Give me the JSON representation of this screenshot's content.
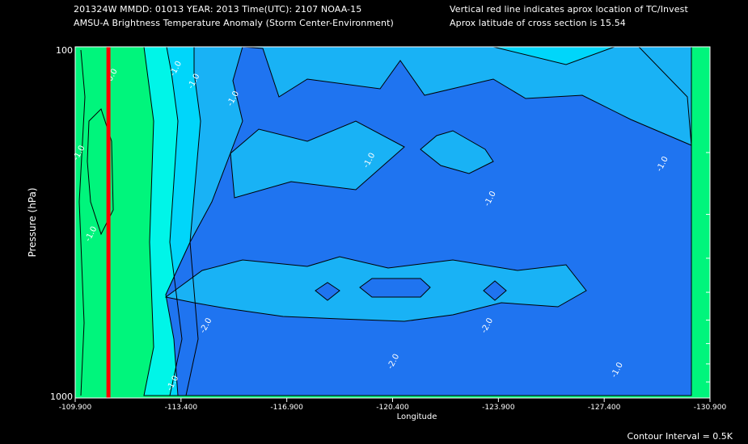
{
  "header": {
    "line1_left": "201324W  MMDD: 01013 YEAR: 2013 Time(UTC): 2107 NOAA-15",
    "line2_left": "AMSU-A Brightness Temperature Anomaly (Storm Center-Environment)",
    "line1_right": "Vertical red line indicates aprox location of TC/Invest",
    "line2_right": "Aprox latitude of cross section is 15.54"
  },
  "footer": {
    "contour_interval": "Contour Interval = 0.5K"
  },
  "colors": {
    "background": "#000000",
    "fill_green": "#00f57c",
    "fill_aqua": "#00f5e8",
    "fill_cyan": "#00d6fa",
    "fill_lightblue": "#19b2f5",
    "fill_blue": "#1f74f0",
    "storm_line": "#ff0000",
    "contour": "#000000"
  },
  "chart_data": {
    "type": "contour",
    "xlabel": "Longitude",
    "ylabel": "Pressure (hPa)",
    "x_ticks": [
      "-109.900",
      "-113.400",
      "-116.900",
      "-120.400",
      "-123.900",
      "-127.400",
      "-130.900"
    ],
    "x_tick_values": [
      -109.9,
      -113.4,
      -116.9,
      -120.4,
      -123.9,
      -127.4,
      -130.9
    ],
    "y_ticks": [
      "100",
      "1000"
    ],
    "y_scale": "log",
    "ylim": [
      1000,
      100
    ],
    "xlim": [
      -109.9,
      -130.9
    ],
    "storm_longitude": -111.0,
    "contour_interval_k": 0.5,
    "contour_labels": [
      {
        "text": "0.0",
        "lon": -111.1,
        "p": 120
      },
      {
        "text": "-1.0",
        "lon": -113.2,
        "p": 115
      },
      {
        "text": "-1.0",
        "lon": -113.8,
        "p": 125
      },
      {
        "text": "-1.0",
        "lon": -115.1,
        "p": 140
      },
      {
        "text": "-1.0",
        "lon": -110.0,
        "p": 200
      },
      {
        "text": "-1.0",
        "lon": -110.4,
        "p": 340
      },
      {
        "text": "-1.0",
        "lon": -119.6,
        "p": 210
      },
      {
        "text": "-1.0",
        "lon": -123.6,
        "p": 270
      },
      {
        "text": "-1.0",
        "lon": -129.3,
        "p": 215
      },
      {
        "text": "-2.0",
        "lon": -114.2,
        "p": 620
      },
      {
        "text": "-2.0",
        "lon": -123.5,
        "p": 620
      },
      {
        "text": "-2.0",
        "lon": -120.4,
        "p": 785
      },
      {
        "text": "-1.0",
        "lon": -113.1,
        "p": 905
      },
      {
        "text": "-1.0",
        "lon": -127.8,
        "p": 830
      }
    ]
  }
}
